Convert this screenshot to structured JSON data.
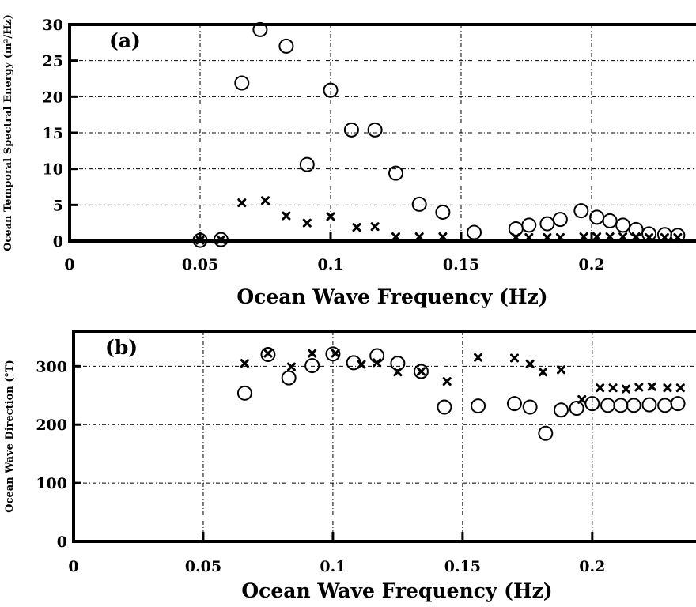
{
  "chart_data": [
    {
      "type": "scatter",
      "panel_label": "(a)",
      "xlabel": "Ocean Wave Frequency (Hz)",
      "ylabel": "Ocean Temporal Spectral Energy (m²/Hz)",
      "xlim": [
        0,
        0.24
      ],
      "ylim": [
        0,
        30
      ],
      "x_ticks": [
        0,
        0.05,
        0.1,
        0.15,
        0.2
      ],
      "x_tick_labels": [
        "0",
        "0.05",
        "0.1",
        "0.15",
        "0.2"
      ],
      "y_ticks": [
        0,
        5,
        10,
        15,
        20,
        25,
        30
      ],
      "y_tick_labels": [
        "0",
        "5",
        "10",
        "15",
        "20",
        "25",
        "30"
      ],
      "grid": true,
      "series": [
        {
          "marker": "circle",
          "points": [
            [
              0.05,
              0.1
            ],
            [
              0.058,
              0.2
            ],
            [
              0.066,
              21.9
            ],
            [
              0.073,
              29.3
            ],
            [
              0.083,
              27.0
            ],
            [
              0.091,
              10.6
            ],
            [
              0.1,
              20.9
            ],
            [
              0.108,
              15.4
            ],
            [
              0.117,
              15.4
            ],
            [
              0.125,
              9.4
            ],
            [
              0.134,
              5.1
            ],
            [
              0.143,
              4.0
            ],
            [
              0.155,
              1.2
            ],
            [
              0.171,
              1.7
            ],
            [
              0.176,
              2.2
            ],
            [
              0.183,
              2.4
            ],
            [
              0.188,
              3.0
            ],
            [
              0.196,
              4.2
            ],
            [
              0.202,
              3.3
            ],
            [
              0.207,
              2.8
            ],
            [
              0.212,
              2.2
            ],
            [
              0.217,
              1.6
            ],
            [
              0.222,
              1.0
            ],
            [
              0.228,
              0.9
            ],
            [
              0.233,
              0.8
            ]
          ]
        },
        {
          "marker": "x",
          "points": [
            [
              0.05,
              0.1
            ],
            [
              0.058,
              0.2
            ],
            [
              0.066,
              5.3
            ],
            [
              0.075,
              5.6
            ],
            [
              0.083,
              3.5
            ],
            [
              0.091,
              2.5
            ],
            [
              0.1,
              3.4
            ],
            [
              0.11,
              1.9
            ],
            [
              0.117,
              2.0
            ],
            [
              0.125,
              0.6
            ],
            [
              0.134,
              0.6
            ],
            [
              0.143,
              0.6
            ],
            [
              0.171,
              0.5
            ],
            [
              0.176,
              0.5
            ],
            [
              0.183,
              0.5
            ],
            [
              0.188,
              0.5
            ],
            [
              0.197,
              0.6
            ],
            [
              0.202,
              0.6
            ],
            [
              0.207,
              0.6
            ],
            [
              0.212,
              0.6
            ],
            [
              0.217,
              0.6
            ],
            [
              0.222,
              0.5
            ],
            [
              0.228,
              0.5
            ],
            [
              0.233,
              0.5
            ]
          ]
        }
      ]
    },
    {
      "type": "scatter",
      "panel_label": "(b)",
      "xlabel": "Ocean Wave Frequency (Hz)",
      "ylabel": "Ocean Wave Direction (°T)",
      "xlim": [
        0,
        0.24
      ],
      "ylim": [
        0,
        360
      ],
      "x_ticks": [
        0,
        0.05,
        0.1,
        0.15,
        0.2
      ],
      "x_tick_labels": [
        "0",
        "0.05",
        "0.1",
        "0.15",
        "0.2"
      ],
      "y_ticks": [
        0,
        100,
        200,
        300
      ],
      "y_tick_labels": [
        "0",
        "100",
        "200",
        "300"
      ],
      "grid": true,
      "series": [
        {
          "marker": "circle",
          "points": [
            [
              0.066,
              254
            ],
            [
              0.075,
              320
            ],
            [
              0.083,
              280
            ],
            [
              0.092,
              301
            ],
            [
              0.1,
              321
            ],
            [
              0.108,
              306
            ],
            [
              0.117,
              318
            ],
            [
              0.125,
              305
            ],
            [
              0.134,
              291
            ],
            [
              0.143,
              230
            ],
            [
              0.156,
              232
            ],
            [
              0.17,
              236
            ],
            [
              0.176,
              230
            ],
            [
              0.182,
              185
            ],
            [
              0.188,
              225
            ],
            [
              0.194,
              228
            ],
            [
              0.2,
              236
            ],
            [
              0.206,
              233
            ],
            [
              0.211,
              233
            ],
            [
              0.216,
              233
            ],
            [
              0.222,
              234
            ],
            [
              0.228,
              233
            ],
            [
              0.233,
              236
            ]
          ]
        },
        {
          "marker": "x",
          "points": [
            [
              0.066,
              305
            ],
            [
              0.075,
              322
            ],
            [
              0.084,
              299
            ],
            [
              0.092,
              322
            ],
            [
              0.101,
              322
            ],
            [
              0.111,
              303
            ],
            [
              0.117,
              306
            ],
            [
              0.125,
              290
            ],
            [
              0.134,
              291
            ],
            [
              0.144,
              274
            ],
            [
              0.156,
              315
            ],
            [
              0.17,
              314
            ],
            [
              0.176,
              304
            ],
            [
              0.181,
              290
            ],
            [
              0.188,
              294
            ],
            [
              0.196,
              243
            ],
            [
              0.203,
              263
            ],
            [
              0.208,
              263
            ],
            [
              0.213,
              261
            ],
            [
              0.218,
              264
            ],
            [
              0.223,
              265
            ],
            [
              0.229,
              263
            ],
            [
              0.234,
              263
            ]
          ]
        }
      ]
    }
  ]
}
